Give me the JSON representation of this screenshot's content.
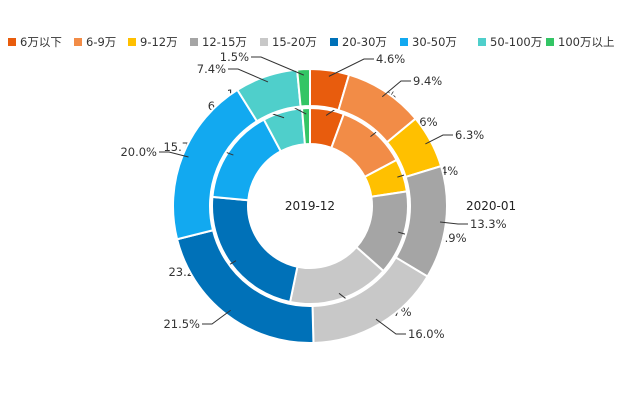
{
  "chart_data": {
    "type": "pie",
    "subtype": "nested-donut",
    "categories": [
      "6万以下",
      "6-9万",
      "9-12万",
      "12-15万",
      "15-20万",
      "20-30万",
      "30-50万",
      "50-100万",
      "100万以上"
    ],
    "colors": [
      "#E85C0D",
      "#F28C47",
      "#FFC000",
      "#A5A5A5",
      "#C8C8C8",
      "#0071B8",
      "#12A9F0",
      "#4FCFCB",
      "#33C565"
    ],
    "series": [
      {
        "name": "2019-12",
        "ring": "inner",
        "values": [
          5.6,
          11.6,
          5.4,
          13.9,
          16.7,
          23.2,
          15.7,
          6.5,
          1.3
        ],
        "labels": [
          "5.6%",
          "11.6%",
          "5.4%",
          "13.9%",
          "16.7%",
          "23.2%",
          "15.7%",
          "6.5%",
          "1.3%"
        ]
      },
      {
        "name": "2020-01",
        "ring": "outer",
        "values": [
          4.6,
          9.4,
          6.3,
          13.3,
          16.0,
          21.5,
          20.0,
          7.4,
          1.5
        ],
        "labels": [
          "4.6%",
          "9.4%",
          "6.3%",
          "13.3%",
          "16.0%",
          "21.5%",
          "20.0%",
          "7.4%",
          "1.5%"
        ]
      }
    ],
    "legend_position": "top"
  }
}
